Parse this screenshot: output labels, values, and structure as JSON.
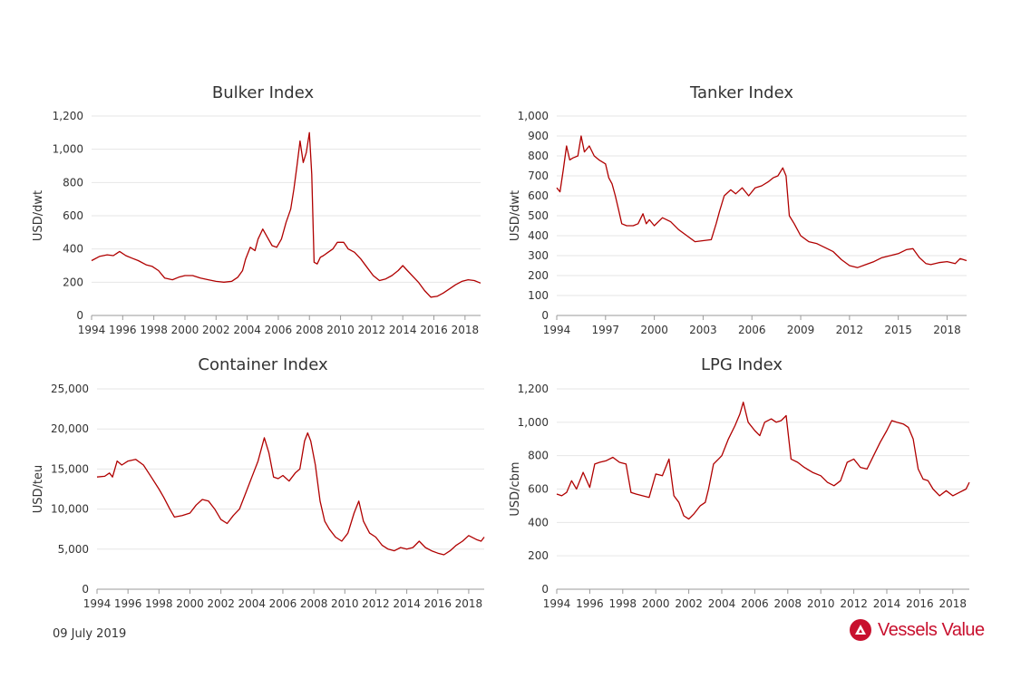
{
  "footer": {
    "date": "09 July 2019",
    "brand_name": "Vessels Value"
  },
  "colors": {
    "line": "#b00000",
    "grid": "#e6e6e6",
    "axis": "#333333",
    "brand": "#c8102e"
  },
  "chart_data": [
    {
      "id": "bulker",
      "type": "line",
      "title": "Bulker Index",
      "ylabel": "USD/dwt",
      "xlim": [
        1994,
        2019
      ],
      "ylim": [
        0,
        1200
      ],
      "xticks": [
        1994,
        1996,
        1998,
        2000,
        2002,
        2004,
        2006,
        2008,
        2010,
        2012,
        2014,
        2016,
        2018
      ],
      "yticks": [
        0,
        200,
        400,
        600,
        800,
        1000,
        1200
      ],
      "yticklabels": [
        "0",
        "200",
        "400",
        "600",
        "800",
        "1,000",
        "1,200"
      ],
      "grid": true,
      "series": [
        {
          "x": [
            1994.0,
            1994.5,
            1995.0,
            1995.4,
            1995.8,
            1996.2,
            1996.6,
            1997.0,
            1997.5,
            1997.9,
            1998.3,
            1998.7,
            1999.2,
            1999.6,
            2000.0,
            2000.5,
            2001.0,
            2001.5,
            2002.0,
            2002.5,
            2003.0,
            2003.4,
            2003.7,
            2003.9,
            2004.2,
            2004.5,
            2004.7,
            2005.0,
            2005.3,
            2005.6,
            2005.9,
            2006.2,
            2006.5,
            2006.8,
            2007.0,
            2007.2,
            2007.4,
            2007.6,
            2007.8,
            2008.0,
            2008.15,
            2008.3,
            2008.5,
            2008.7,
            2008.9,
            2009.2,
            2009.5,
            2009.8,
            2010.2,
            2010.5,
            2010.9,
            2011.3,
            2011.7,
            2012.1,
            2012.5,
            2012.9,
            2013.3,
            2013.7,
            2014.0,
            2014.3,
            2014.7,
            2015.0,
            2015.4,
            2015.8,
            2016.2,
            2016.6,
            2017.0,
            2017.4,
            2017.8,
            2018.2,
            2018.6,
            2019.0
          ],
          "y": [
            330,
            355,
            365,
            360,
            385,
            360,
            345,
            330,
            305,
            295,
            270,
            225,
            215,
            230,
            240,
            240,
            225,
            215,
            205,
            200,
            205,
            230,
            270,
            340,
            410,
            390,
            460,
            520,
            470,
            420,
            410,
            460,
            560,
            640,
            760,
            900,
            1050,
            920,
            980,
            1100,
            850,
            320,
            310,
            350,
            360,
            380,
            400,
            440,
            440,
            400,
            380,
            340,
            290,
            240,
            210,
            220,
            240,
            270,
            300,
            270,
            230,
            200,
            150,
            110,
            115,
            135,
            160,
            185,
            205,
            215,
            210,
            195
          ]
        }
      ]
    },
    {
      "id": "tanker",
      "type": "line",
      "title": "Tanker Index",
      "ylabel": "USD/dwt",
      "xlim": [
        1994,
        2019.2
      ],
      "ylim": [
        0,
        1000
      ],
      "xticks": [
        1994,
        1997,
        2000,
        2003,
        2006,
        2009,
        2012,
        2015,
        2018
      ],
      "yticks": [
        0,
        100,
        200,
        300,
        400,
        500,
        600,
        700,
        800,
        900,
        1000
      ],
      "yticklabels": [
        "0",
        "100",
        "200",
        "300",
        "400",
        "500",
        "600",
        "700",
        "800",
        "900",
        "1,000"
      ],
      "grid": true,
      "series": [
        {
          "x": [
            1994.0,
            1994.2,
            1994.4,
            1994.6,
            1994.8,
            1995.0,
            1995.3,
            1995.5,
            1995.7,
            1996.0,
            1996.3,
            1996.6,
            1997.0,
            1997.2,
            1997.4,
            1997.6,
            1997.8,
            1998.0,
            1998.3,
            1998.7,
            1999.0,
            1999.3,
            1999.5,
            1999.7,
            2000.0,
            2000.5,
            2001.0,
            2001.5,
            2002.0,
            2002.5,
            2003.0,
            2003.5,
            2003.8,
            2004.0,
            2004.3,
            2004.7,
            2005.0,
            2005.4,
            2005.8,
            2006.2,
            2006.6,
            2007.0,
            2007.3,
            2007.6,
            2007.9,
            2008.1,
            2008.3,
            2008.6,
            2009.0,
            2009.5,
            2010.0,
            2010.5,
            2011.0,
            2011.5,
            2012.0,
            2012.5,
            2013.0,
            2013.5,
            2014.0,
            2014.5,
            2015.0,
            2015.5,
            2015.9,
            2016.3,
            2016.7,
            2017.0,
            2017.5,
            2018.0,
            2018.5,
            2018.8,
            2019.2
          ],
          "y": [
            640,
            620,
            730,
            850,
            780,
            790,
            800,
            900,
            820,
            850,
            800,
            780,
            760,
            690,
            660,
            600,
            530,
            460,
            450,
            450,
            460,
            510,
            460,
            480,
            450,
            490,
            470,
            430,
            400,
            370,
            375,
            380,
            460,
            520,
            600,
            630,
            610,
            640,
            600,
            640,
            650,
            670,
            690,
            700,
            740,
            700,
            500,
            460,
            400,
            370,
            360,
            340,
            320,
            280,
            250,
            240,
            255,
            270,
            290,
            300,
            310,
            330,
            335,
            290,
            260,
            255,
            265,
            270,
            260,
            285,
            275
          ]
        }
      ]
    },
    {
      "id": "container",
      "type": "line",
      "title": "Container Index",
      "ylabel": "USD/teu",
      "xlim": [
        1994,
        2019
      ],
      "ylim": [
        0,
        25000
      ],
      "xticks": [
        1994,
        1996,
        1998,
        2000,
        2002,
        2004,
        2006,
        2008,
        2010,
        2012,
        2014,
        2016,
        2018
      ],
      "yticks": [
        0,
        5000,
        10000,
        15000,
        20000,
        25000
      ],
      "yticklabels": [
        "0",
        "5,000",
        "10,000",
        "15,000",
        "20,000",
        "25,000"
      ],
      "grid": true,
      "series": [
        {
          "x": [
            1994.0,
            1994.5,
            1994.8,
            1995.0,
            1995.3,
            1995.6,
            1996.0,
            1996.5,
            1997.0,
            1997.5,
            1998.0,
            1998.3,
            1998.7,
            1999.0,
            1999.5,
            2000.0,
            2000.4,
            2000.8,
            2001.2,
            2001.6,
            2002.0,
            2002.4,
            2002.8,
            2003.2,
            2003.6,
            2004.0,
            2004.4,
            2004.8,
            2005.1,
            2005.4,
            2005.7,
            2006.0,
            2006.4,
            2006.8,
            2007.1,
            2007.4,
            2007.6,
            2007.8,
            2008.1,
            2008.4,
            2008.7,
            2009.0,
            2009.4,
            2009.8,
            2010.2,
            2010.6,
            2010.9,
            2011.2,
            2011.6,
            2012.0,
            2012.4,
            2012.8,
            2013.2,
            2013.6,
            2014.0,
            2014.4,
            2014.8,
            2015.2,
            2015.6,
            2016.0,
            2016.4,
            2016.8,
            2017.2,
            2017.6,
            2018.0,
            2018.5,
            2018.8,
            2019.0
          ],
          "y": [
            14000,
            14100,
            14500,
            14000,
            16000,
            15500,
            16000,
            16200,
            15500,
            14000,
            12500,
            11500,
            10000,
            9000,
            9200,
            9500,
            10500,
            11200,
            11000,
            10000,
            8700,
            8200,
            9200,
            10000,
            12000,
            14000,
            16000,
            18900,
            17000,
            14000,
            13800,
            14200,
            13500,
            14500,
            15000,
            18500,
            19500,
            18500,
            15500,
            11000,
            8500,
            7500,
            6500,
            6000,
            7000,
            9500,
            11000,
            8500,
            7000,
            6500,
            5500,
            5000,
            4800,
            5200,
            5000,
            5200,
            6000,
            5200,
            4800,
            4500,
            4300,
            4800,
            5500,
            6000,
            6700,
            6200,
            6000,
            6500
          ]
        }
      ]
    },
    {
      "id": "lpg",
      "type": "line",
      "title": "LPG Index",
      "ylabel": "USD/cbm",
      "xlim": [
        1994,
        2019
      ],
      "ylim": [
        0,
        1200
      ],
      "xticks": [
        1994,
        1996,
        1998,
        2000,
        2002,
        2004,
        2006,
        2008,
        2010,
        2012,
        2014,
        2016,
        2018
      ],
      "yticks": [
        0,
        200,
        400,
        600,
        800,
        1000,
        1200
      ],
      "yticklabels": [
        "0",
        "200",
        "400",
        "600",
        "800",
        "1,000",
        "1,200"
      ],
      "grid": true,
      "series": [
        {
          "x": [
            1994.0,
            1994.3,
            1994.6,
            1994.9,
            1995.2,
            1995.6,
            1996.0,
            1996.3,
            1996.6,
            1997.0,
            1997.4,
            1997.8,
            1998.2,
            1998.5,
            1998.8,
            1999.2,
            1999.6,
            2000.0,
            2000.4,
            2000.8,
            2001.1,
            2001.4,
            2001.7,
            2002.0,
            2002.3,
            2002.7,
            2003.0,
            2003.2,
            2003.5,
            2003.8,
            2004.0,
            2004.4,
            2004.8,
            2005.1,
            2005.3,
            2005.6,
            2006.0,
            2006.3,
            2006.6,
            2007.0,
            2007.3,
            2007.6,
            2007.9,
            2008.2,
            2008.6,
            2009.0,
            2009.5,
            2010.0,
            2010.4,
            2010.8,
            2011.2,
            2011.6,
            2012.0,
            2012.4,
            2012.8,
            2013.2,
            2013.6,
            2014.0,
            2014.3,
            2014.6,
            2015.0,
            2015.3,
            2015.6,
            2015.9,
            2016.2,
            2016.5,
            2016.8,
            2017.2,
            2017.6,
            2018.0,
            2018.4,
            2018.8,
            2019.0
          ],
          "y": [
            570,
            560,
            580,
            650,
            600,
            700,
            610,
            750,
            760,
            770,
            790,
            760,
            750,
            580,
            570,
            560,
            550,
            690,
            680,
            780,
            560,
            520,
            440,
            420,
            450,
            500,
            520,
            600,
            750,
            780,
            800,
            900,
            980,
            1050,
            1120,
            1000,
            950,
            920,
            1000,
            1020,
            1000,
            1010,
            1040,
            780,
            760,
            730,
            700,
            680,
            640,
            620,
            650,
            760,
            780,
            730,
            720,
            800,
            880,
            950,
            1010,
            1000,
            990,
            970,
            900,
            720,
            660,
            650,
            600,
            560,
            590,
            560,
            580,
            600,
            640
          ]
        }
      ]
    }
  ]
}
